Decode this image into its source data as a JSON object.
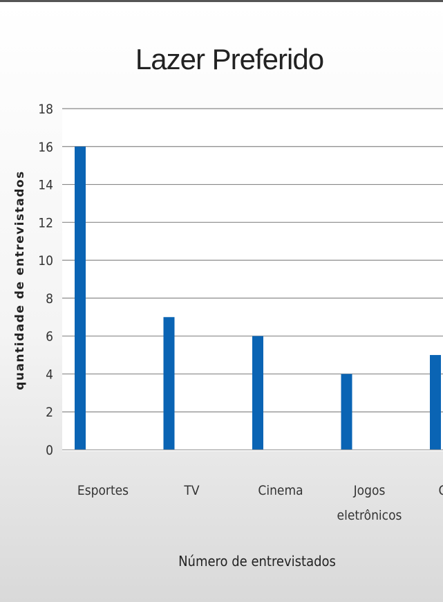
{
  "chart_data": {
    "type": "bar",
    "title": "Lazer Preferido",
    "xlabel": "Número de entrevistados",
    "ylabel": "quantidade de entrevistados",
    "categories": [
      "Esportes",
      "TV",
      "Cinema",
      "Jogos eletrônicos",
      "Outros"
    ],
    "category_lines": [
      [
        "Esportes"
      ],
      [
        "TV"
      ],
      [
        "Cinema"
      ],
      [
        "Jogos",
        "eletrônicos"
      ],
      [
        "Outros"
      ]
    ],
    "values": [
      16,
      7,
      6,
      4,
      5
    ],
    "ylim": [
      0,
      18
    ],
    "yticks": [
      0,
      2,
      4,
      6,
      8,
      10,
      12,
      14,
      16,
      18
    ],
    "grid": true,
    "legend": "none",
    "colors": {
      "bar": "#0a64b4",
      "grid": "#888888",
      "plot_bg": "#ffffff"
    }
  }
}
